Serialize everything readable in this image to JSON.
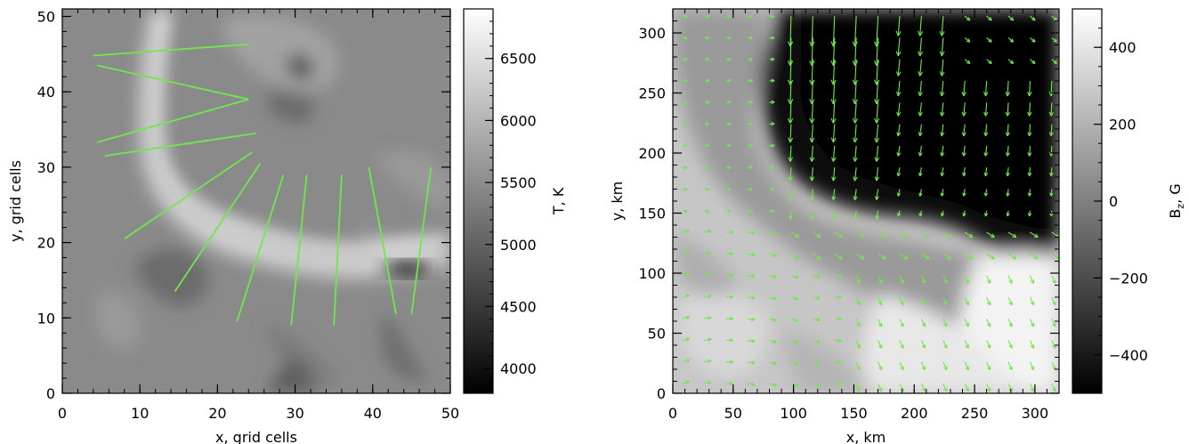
{
  "chart_data": [
    {
      "type": "heatmap",
      "xlabel": "x, grid cells",
      "ylabel": "y, grid cells",
      "xlim": [
        0,
        50
      ],
      "ylim": [
        0,
        51
      ],
      "xticks": [
        "0",
        "10",
        "20",
        "30",
        "40",
        "50"
      ],
      "yticks": [
        "0",
        "10",
        "20",
        "30",
        "40",
        "50"
      ],
      "colormap": "grayscale",
      "colorbar": {
        "label": "T, K",
        "range": [
          3800,
          6900
        ],
        "ticks": [
          "4000",
          "4500",
          "5000",
          "5500",
          "6000",
          "6500"
        ]
      },
      "overlay_color": "#6fe84a",
      "overlay_lines": [
        {
          "x": [
            4.0,
            24.0
          ],
          "y": [
            44.8,
            46.3
          ]
        },
        {
          "x": [
            4.5,
            24.0
          ],
          "y": [
            43.5,
            39.0
          ]
        },
        {
          "x": [
            24.0,
            4.5
          ],
          "y": [
            39.0,
            33.3
          ]
        },
        {
          "x": [
            5.5,
            25.0
          ],
          "y": [
            31.5,
            34.5
          ]
        },
        {
          "x": [
            8.0,
            24.5
          ],
          "y": [
            20.5,
            32.0
          ]
        },
        {
          "x": [
            14.5,
            25.5
          ],
          "y": [
            13.5,
            30.5
          ]
        },
        {
          "x": [
            22.5,
            28.5
          ],
          "y": [
            9.5,
            29.0
          ]
        },
        {
          "x": [
            29.5,
            31.5
          ],
          "y": [
            9.0,
            29.0
          ]
        },
        {
          "x": [
            35.0,
            36.0
          ],
          "y": [
            9.0,
            29.0
          ]
        },
        {
          "x": [
            39.5,
            43.0
          ],
          "y": [
            30.0,
            10.5
          ]
        },
        {
          "x": [
            47.5,
            45.0
          ],
          "y": [
            30.0,
            10.5
          ]
        }
      ]
    },
    {
      "type": "heatmap",
      "xlabel": "x, km",
      "ylabel": "y, km",
      "xlim": [
        0,
        320
      ],
      "ylim": [
        0,
        320
      ],
      "xticks": [
        "0",
        "50",
        "100",
        "150",
        "200",
        "250",
        "300"
      ],
      "yticks": [
        "0",
        "50",
        "100",
        "150",
        "200",
        "250",
        "300"
      ],
      "colormap": "grayscale",
      "colorbar": {
        "label": "B",
        "label_subscript": "z",
        "label_suffix": ", G",
        "range": [
          -500,
          500
        ],
        "ticks": [
          "-400",
          "-200",
          "0",
          "200",
          "400"
        ]
      },
      "overlay_color": "#6fe84a",
      "overlay": "vector field arrows"
    }
  ]
}
